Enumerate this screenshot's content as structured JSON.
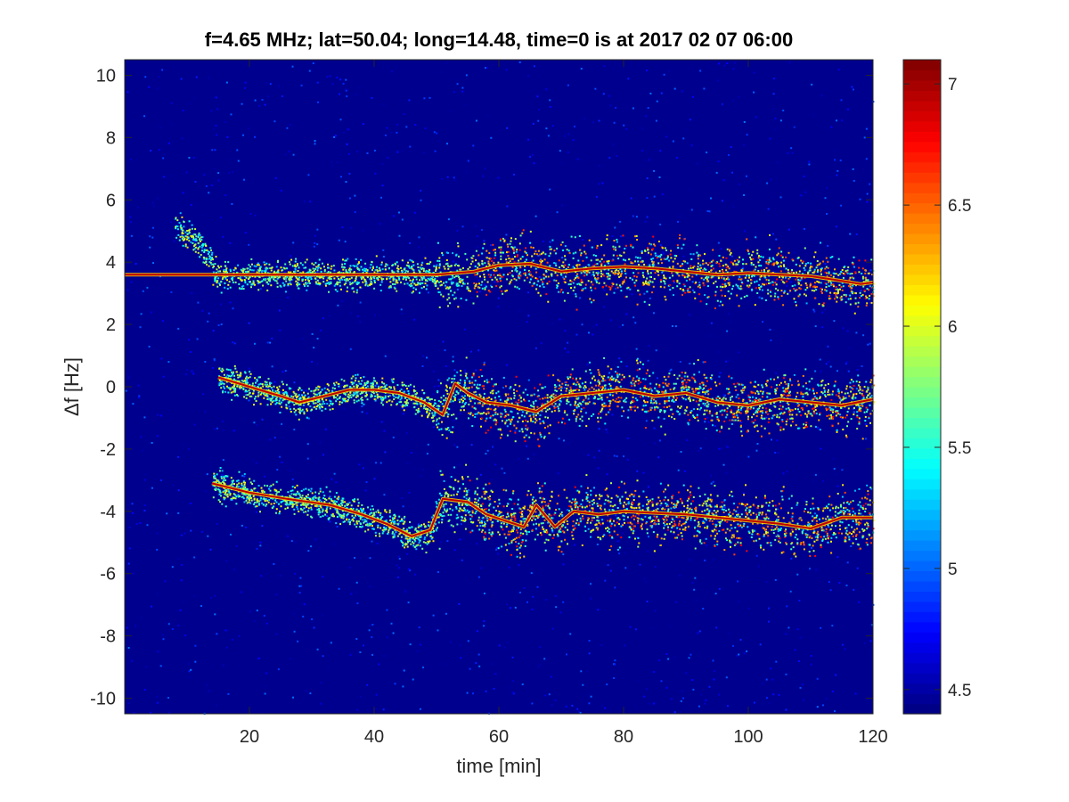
{
  "chart_data": {
    "type": "heatmap",
    "title": "f=4.65 MHz;  lat=50.04; long=14.48, time=0 is at 2017 02 07 06:00",
    "xlabel": "time [min]",
    "ylabel": "Δf [Hz]",
    "xlim": [
      0,
      120
    ],
    "ylim": [
      -10.5,
      10.5
    ],
    "x_ticks": [
      20,
      40,
      60,
      80,
      100,
      120
    ],
    "y_ticks": [
      -10,
      -8,
      -6,
      -4,
      -2,
      0,
      2,
      4,
      6,
      8,
      10
    ],
    "colormap": "jet",
    "color_range": [
      4.4,
      7.1
    ],
    "colorbar_ticks": [
      4.5,
      5,
      5.5,
      6,
      6.5,
      7
    ],
    "background_color": "#00008f",
    "traces": [
      {
        "label": "upper trace",
        "x": [
          0,
          50,
          56,
          60,
          65,
          70,
          75,
          80,
          85,
          90,
          95,
          100,
          105,
          110,
          115,
          118,
          120
        ],
        "y": [
          3.6,
          3.6,
          3.7,
          3.9,
          3.95,
          3.7,
          3.8,
          3.85,
          3.8,
          3.7,
          3.6,
          3.65,
          3.6,
          3.55,
          3.4,
          3.3,
          3.35
        ]
      },
      {
        "label": "middle trace",
        "x": [
          15,
          20,
          25,
          28,
          36,
          40,
          44,
          48,
          51,
          53,
          55,
          58,
          62,
          66,
          70,
          75,
          80,
          85,
          90,
          95,
          100,
          105,
          110,
          115,
          120
        ],
        "y": [
          0.3,
          0,
          -0.3,
          -0.5,
          -0.1,
          -0.1,
          -0.2,
          -0.5,
          -0.9,
          0.1,
          -0.2,
          -0.5,
          -0.6,
          -0.8,
          -0.3,
          -0.2,
          -0.1,
          -0.3,
          -0.2,
          -0.5,
          -0.6,
          -0.4,
          -0.5,
          -0.6,
          -0.4
        ]
      },
      {
        "label": "lower trace",
        "x": [
          14,
          20,
          26,
          33,
          38,
          42,
          46,
          49,
          51,
          55,
          58,
          61,
          64,
          66,
          69,
          72,
          76,
          80,
          85,
          90,
          95,
          100,
          105,
          110,
          115,
          120
        ],
        "y": [
          -3.1,
          -3.4,
          -3.6,
          -3.8,
          -4.1,
          -4.4,
          -4.8,
          -4.6,
          -3.6,
          -3.7,
          -4.1,
          -4.3,
          -4.5,
          -3.8,
          -4.5,
          -4.0,
          -4.1,
          -4.0,
          -4.05,
          -4.1,
          -4.2,
          -4.3,
          -4.4,
          -4.55,
          -4.2,
          -4.2
        ]
      }
    ]
  }
}
